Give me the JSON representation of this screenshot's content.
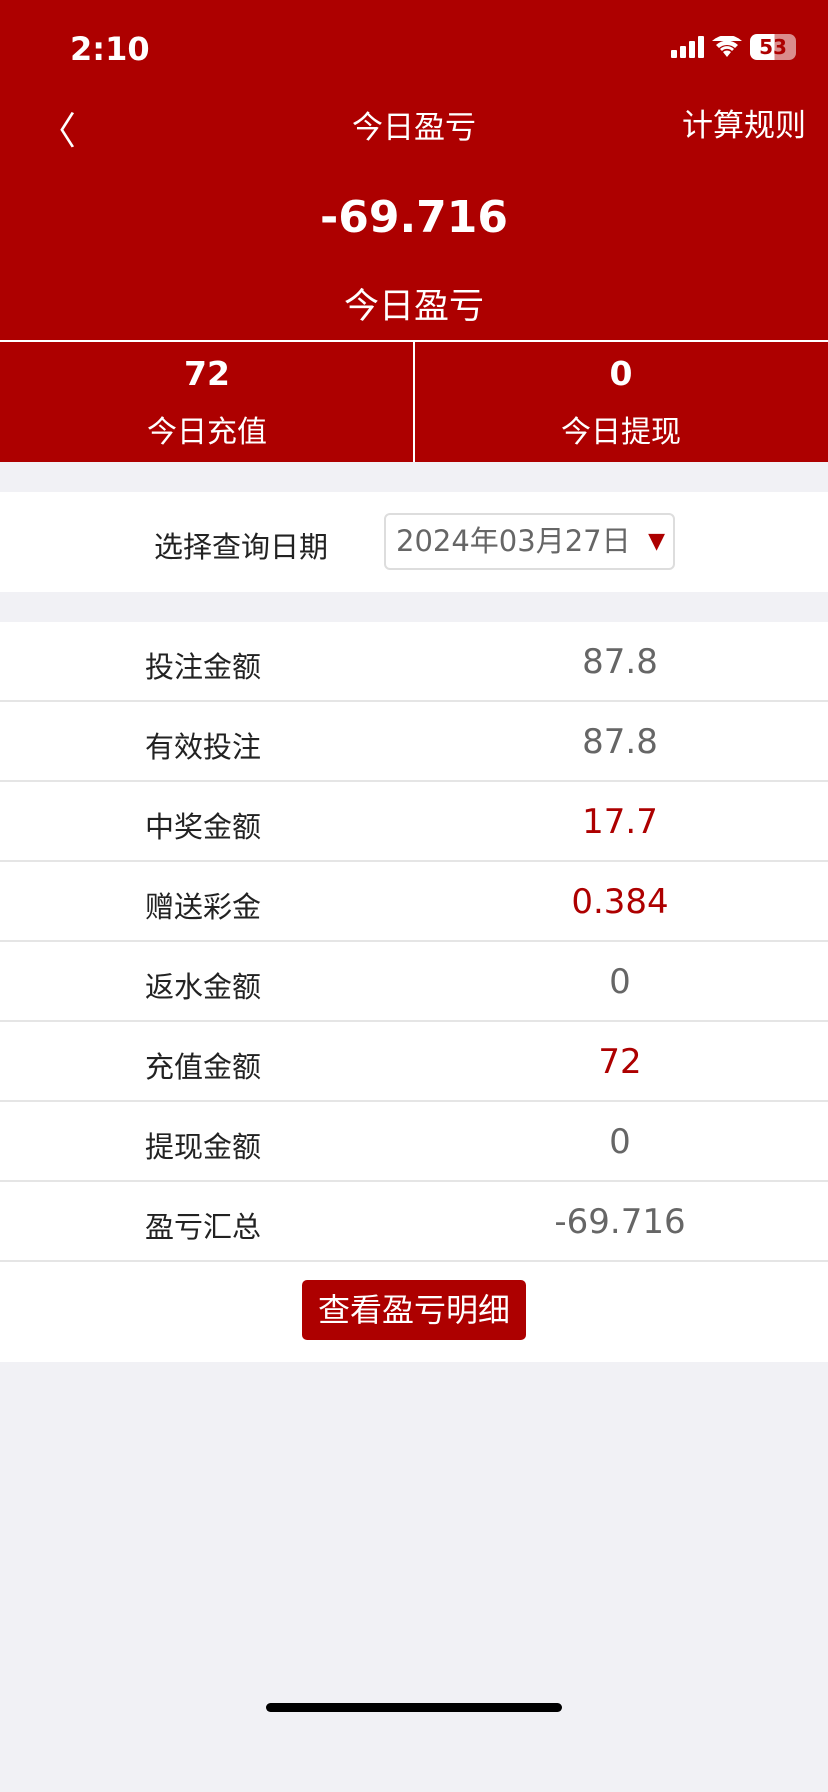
{
  "status": {
    "time": "2:10",
    "battery": "53"
  },
  "nav": {
    "back_icon": "chevron-left-icon",
    "title": "今日盈亏",
    "rules": "计算规则"
  },
  "summary": {
    "value": "-69.716",
    "label": "今日盈亏"
  },
  "stats": [
    {
      "value": "72",
      "label": "今日充值"
    },
    {
      "value": "0",
      "label": "今日提现"
    }
  ],
  "date": {
    "label": "选择查询日期",
    "value": "2024年03月27日"
  },
  "rows": [
    {
      "label": "投注金额",
      "value": "87.8",
      "highlight": false
    },
    {
      "label": "有效投注",
      "value": "87.8",
      "highlight": false
    },
    {
      "label": "中奖金额",
      "value": "17.7",
      "highlight": true
    },
    {
      "label": "赠送彩金",
      "value": "0.384",
      "highlight": true
    },
    {
      "label": "返水金额",
      "value": "0",
      "highlight": false
    },
    {
      "label": "充值金额",
      "value": "72",
      "highlight": true
    },
    {
      "label": "提现金额",
      "value": "0",
      "highlight": false
    },
    {
      "label": "盈亏汇总",
      "value": "-69.716",
      "highlight": false
    }
  ],
  "button": "查看盈亏明细",
  "colors": {
    "brand": "#ad0000",
    "background": "#f1f1f5"
  }
}
